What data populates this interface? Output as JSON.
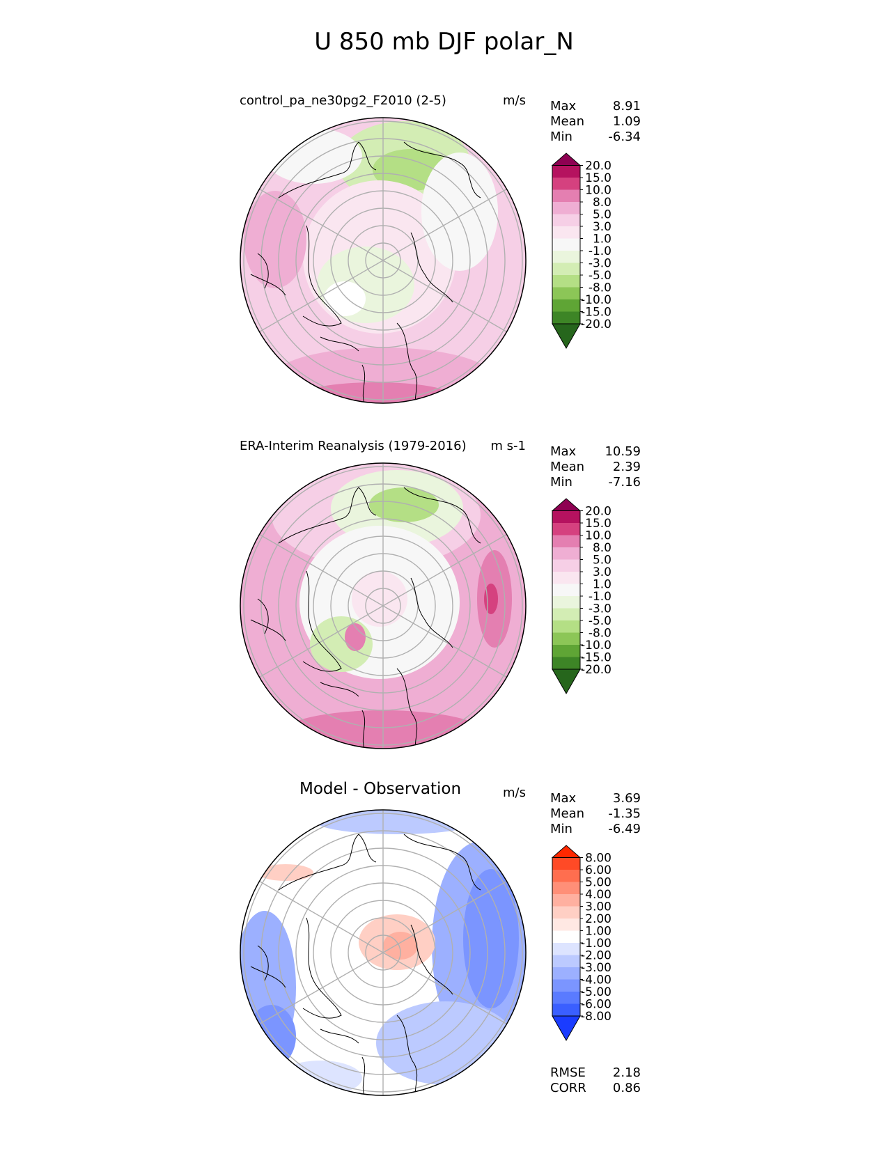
{
  "figure": {
    "title": "U 850 mb DJF polar_N"
  },
  "panels": [
    {
      "title": "control_pa_ne30pg2_F2010 (2-5)",
      "units": "m/s",
      "stats": [
        {
          "label": "Max",
          "value": "8.91"
        },
        {
          "label": "Mean",
          "value": "1.09"
        },
        {
          "label": "Min",
          "value": "-6.34"
        }
      ],
      "colorbar": {
        "labels": [
          "20.0",
          "15.0",
          "10.0",
          "8.0",
          "5.0",
          "3.0",
          "1.0",
          "-1.0",
          "-3.0",
          "-5.0",
          "-8.0",
          "-10.0",
          "-15.0",
          "-20.0"
        ],
        "colors": [
          "#8e0152",
          "#b5125f",
          "#d5417f",
          "#e47fb1",
          "#efaed3",
          "#f6cfe6",
          "#fae6f0",
          "#f7f7f7",
          "#eaf5dd",
          "#d3edb4",
          "#b4df85",
          "#8cc657",
          "#5fa535",
          "#3d8526",
          "#26661c"
        ]
      }
    },
    {
      "title": "ERA-Interim Reanalysis (1979-2016)",
      "units": "m s-1",
      "stats": [
        {
          "label": "Max",
          "value": "10.59"
        },
        {
          "label": "Mean",
          "value": "2.39"
        },
        {
          "label": "Min",
          "value": "-7.16"
        }
      ],
      "colorbar": {
        "labels": [
          "20.0",
          "15.0",
          "10.0",
          "8.0",
          "5.0",
          "3.0",
          "1.0",
          "-1.0",
          "-3.0",
          "-5.0",
          "-8.0",
          "-10.0",
          "-15.0",
          "-20.0"
        ],
        "colors": [
          "#8e0152",
          "#b5125f",
          "#d5417f",
          "#e47fb1",
          "#efaed3",
          "#f6cfe6",
          "#fae6f0",
          "#f7f7f7",
          "#eaf5dd",
          "#d3edb4",
          "#b4df85",
          "#8cc657",
          "#5fa535",
          "#3d8526",
          "#26661c"
        ]
      }
    },
    {
      "title": "Model - Observation",
      "units": "m/s",
      "stats": [
        {
          "label": "Max",
          "value": "3.69"
        },
        {
          "label": "Mean",
          "value": "-1.35"
        },
        {
          "label": "Min",
          "value": "-6.49"
        }
      ],
      "extra_stats": [
        {
          "label": "RMSE",
          "value": "2.18"
        },
        {
          "label": "CORR",
          "value": "0.86"
        }
      ],
      "colorbar": {
        "labels": [
          "8.00",
          "6.00",
          "5.00",
          "4.00",
          "3.00",
          "2.00",
          "1.00",
          "-1.00",
          "-2.00",
          "-3.00",
          "-4.00",
          "-5.00",
          "-6.00",
          "-8.00"
        ],
        "colors": [
          "#ff2800",
          "#ff4a26",
          "#ff6e4f",
          "#ff8f78",
          "#ffb0a0",
          "#ffcfc4",
          "#ffe8e3",
          "#ffffff",
          "#dde4ff",
          "#bccaff",
          "#9cb0ff",
          "#7b95ff",
          "#5a7bff",
          "#3a5fff",
          "#1a3cff"
        ]
      }
    }
  ]
}
